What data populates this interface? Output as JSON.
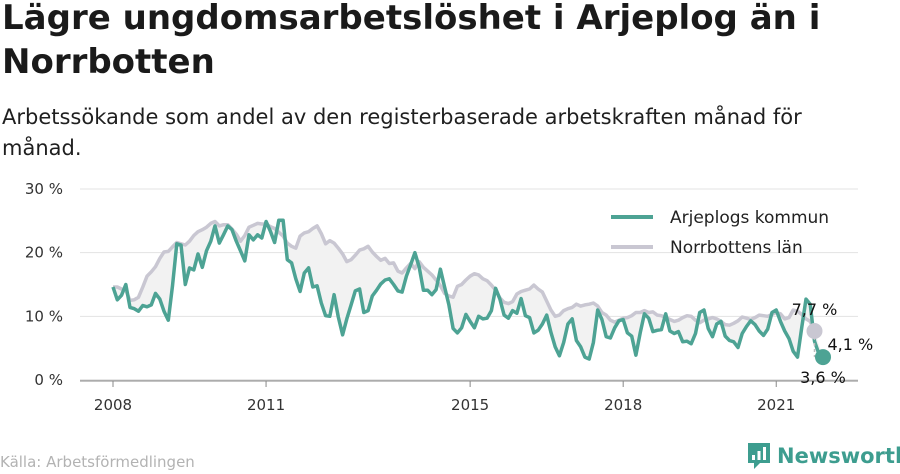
{
  "title": "Lägre ungdomsarbetslöshet i Arjeplog än i Norrbotten",
  "subtitle": "Arbetssökande som andel av den registerbaserade arbetskraften månad för månad.",
  "source": "Källa: Arbetsförmedlingen",
  "brand": "Newsworthy",
  "colors": {
    "kommun": "#4da394",
    "lan": "#c9c7d2",
    "fill": "#f2f2f2",
    "grid": "#e3e3e3",
    "axis": "#888888"
  },
  "chart_data": {
    "type": "line",
    "x_ticks": [
      "2008",
      "2011",
      "2015",
      "2018",
      "2021"
    ],
    "y_ticks": [
      "0 %",
      "10 %",
      "20 %",
      "30 %"
    ],
    "ylim": [
      0,
      30
    ],
    "xlim": [
      "2008-01",
      "2022-12"
    ],
    "grid": "horizontal",
    "legend_position": "top-right",
    "series": [
      {
        "name": "Arjeplogs kommun",
        "end_label": "3,6 %",
        "values": [
          14.6,
          12.6,
          13.3,
          15.0,
          11.4,
          11.2,
          10.8,
          11.7,
          11.5,
          11.8,
          13.6,
          12.7,
          10.8,
          9.4,
          14.8,
          21.4,
          21.2,
          15.0,
          17.6,
          17.3,
          19.8,
          17.7,
          20.3,
          21.8,
          24.2,
          21.5,
          22.8,
          24.2,
          23.6,
          21.8,
          20.3,
          18.7,
          22.8,
          22.0,
          22.8,
          22.3,
          24.9,
          23.4,
          21.6,
          25.1,
          25.1,
          18.9,
          18.4,
          15.9,
          13.9,
          16.8,
          17.6,
          14.6,
          14.8,
          12.1,
          10.1,
          10.0,
          13.4,
          9.9,
          7.1,
          9.6,
          11.8,
          14.0,
          14.3,
          10.6,
          10.9,
          13.2,
          14.1,
          15.1,
          15.7,
          15.9,
          15.0,
          14.0,
          13.8,
          16.3,
          18.1,
          20.0,
          17.8,
          14.1,
          14.1,
          13.4,
          14.2,
          17.4,
          14.6,
          11.8,
          8.1,
          7.4,
          8.2,
          10.3,
          9.2,
          8.2,
          10.0,
          9.6,
          9.7,
          10.9,
          14.4,
          12.7,
          10.2,
          9.7,
          10.9,
          10.5,
          12.8,
          10.1,
          9.8,
          7.4,
          7.8,
          8.8,
          10.2,
          7.5,
          5.2,
          3.8,
          5.9,
          8.8,
          9.6,
          6.2,
          5.2,
          3.6,
          3.3,
          5.9,
          11.0,
          9.5,
          6.8,
          6.6,
          8.2,
          9.3,
          9.5,
          7.4,
          6.9,
          3.9,
          7.4,
          10.4,
          9.7,
          7.6,
          7.8,
          7.9,
          10.4,
          7.7,
          7.3,
          7.6,
          6.0,
          6.1,
          5.7,
          7.3,
          10.6,
          11.0,
          8.1,
          6.8,
          8.8,
          9.2,
          6.9,
          6.2,
          6.0,
          5.1,
          7.3,
          8.4,
          9.3,
          8.7,
          7.7,
          7.0,
          8.0,
          10.6,
          11.0,
          9.2,
          7.7,
          6.5,
          4.5,
          3.6,
          8.2,
          12.7,
          11.9,
          6.1,
          4.2,
          3.6
        ]
      },
      {
        "name": "Norrbottens län",
        "end_label": "7,7 %",
        "values": [
          14.6,
          14.6,
          14.3,
          14.1,
          12.5,
          12.6,
          13.0,
          14.6,
          16.3,
          17.0,
          17.8,
          19.1,
          20.1,
          20.2,
          20.9,
          21.6,
          21.4,
          21.2,
          21.8,
          22.7,
          23.3,
          23.6,
          24.0,
          24.6,
          24.9,
          24.2,
          24.4,
          24.4,
          23.7,
          22.9,
          21.8,
          22.7,
          24.0,
          24.3,
          24.6,
          24.5,
          24.5,
          24.1,
          23.8,
          23.2,
          22.6,
          21.5,
          21.0,
          20.7,
          22.6,
          23.1,
          23.3,
          23.8,
          24.2,
          23.0,
          21.4,
          21.9,
          21.5,
          20.7,
          19.8,
          18.6,
          18.9,
          19.6,
          20.4,
          20.6,
          21.0,
          20.1,
          19.4,
          18.8,
          19.1,
          18.3,
          18.4,
          17.1,
          16.8,
          17.6,
          18.3,
          17.5,
          18.6,
          17.7,
          17.1,
          16.5,
          15.7,
          14.8,
          13.6,
          13.2,
          13.0,
          14.7,
          15.0,
          15.7,
          16.3,
          16.7,
          16.5,
          15.9,
          15.6,
          14.9,
          14.1,
          12.9,
          12.2,
          12.0,
          12.3,
          13.5,
          13.9,
          14.1,
          14.3,
          14.9,
          14.3,
          13.8,
          12.4,
          11.0,
          10.0,
          10.2,
          10.9,
          11.2,
          11.4,
          11.9,
          11.6,
          11.8,
          11.9,
          12.1,
          11.6,
          10.6,
          10.2,
          9.4,
          9.1,
          9.4,
          9.7,
          9.8,
          10.1,
          10.6,
          10.6,
          10.9,
          10.6,
          10.7,
          10.2,
          10.1,
          9.8,
          9.5,
          9.2,
          9.4,
          9.8,
          10.1,
          10.0,
          9.4,
          9.0,
          9.4,
          9.6,
          9.8,
          9.6,
          9.2,
          8.7,
          8.6,
          8.9,
          9.3,
          9.9,
          9.7,
          9.5,
          9.8,
          10.2,
          10.1,
          10.0,
          10.3,
          10.6,
          10.4,
          9.6,
          9.8,
          11.0,
          10.8,
          10.3,
          9.6,
          9.2,
          7.7
        ]
      }
    ],
    "gap_label": "4,1 %"
  }
}
